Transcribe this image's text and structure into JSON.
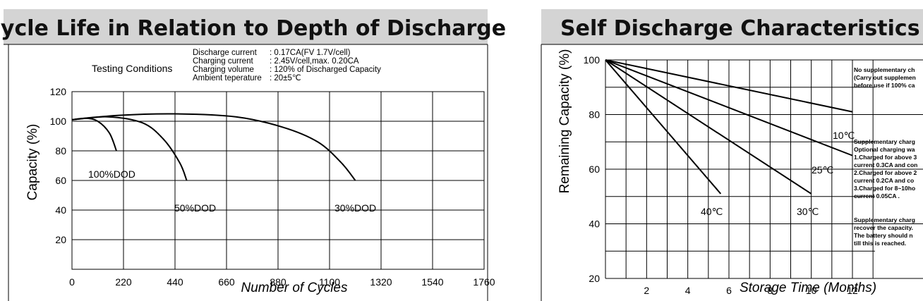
{
  "chart_data": [
    {
      "type": "line",
      "title": "Cycle Life in Relation to Depth of Discharge",
      "xlabel": "Number of Cycles",
      "ylabel": "Capacity (%)",
      "x_ticks": [
        "0",
        "220",
        "440",
        "660",
        "880",
        "1100",
        "1320",
        "1540",
        "1760"
      ],
      "y_ticks": [
        "120",
        "100",
        "80",
        "60",
        "40",
        "20"
      ],
      "xlim": [
        0,
        1760
      ],
      "ylim": [
        0,
        120
      ],
      "grid": true,
      "testing_conditions": {
        "label": "Testing Conditions",
        "lines": [
          {
            "name": "Discharge current",
            "value": ": 0.17CA(FV 1.7V/cell)"
          },
          {
            "name": "Charging current",
            "value": ": 2.45V/cell,max. 0.20CA"
          },
          {
            "name": "Charging volume",
            "value": ": 120% of Discharged Capacity"
          },
          {
            "name": "Ambient teperature",
            "value": ": 20±5℃"
          }
        ]
      },
      "series": [
        {
          "name": "100%DOD",
          "points": [
            [
              0,
              101
            ],
            [
              60,
              102
            ],
            [
              110,
              100
            ],
            [
              160,
              92
            ],
            [
              190,
              80
            ]
          ]
        },
        {
          "name": "50%DOD",
          "points": [
            [
              0,
              101
            ],
            [
              150,
              103
            ],
            [
              300,
              99
            ],
            [
              390,
              88
            ],
            [
              460,
              72
            ],
            [
              490,
              60
            ]
          ]
        },
        {
          "name": "30%DOD",
          "points": [
            [
              0,
              101
            ],
            [
              200,
              104
            ],
            [
              440,
              105
            ],
            [
              700,
              103
            ],
            [
              900,
              96
            ],
            [
              1050,
              86
            ],
            [
              1150,
              72
            ],
            [
              1210,
              60
            ]
          ]
        }
      ]
    },
    {
      "type": "line",
      "title": "Self Discharge Characteristics",
      "xlabel": "Storage Time (Months)",
      "ylabel": "Remaining Capacity (%)",
      "x_ticks": [
        "2",
        "4",
        "6",
        "8",
        "10",
        "12"
      ],
      "y_ticks": [
        "100",
        "80",
        "60",
        "40",
        "20"
      ],
      "xlim": [
        0,
        18
      ],
      "ylim": [
        20,
        100
      ],
      "grid": true,
      "series": [
        {
          "name": "10℃",
          "points": [
            [
              0,
              100
            ],
            [
              12,
              81
            ]
          ]
        },
        {
          "name": "25℃",
          "points": [
            [
              0,
              100
            ],
            [
              12,
              65
            ]
          ]
        },
        {
          "name": "30℃",
          "points": [
            [
              0,
              100
            ],
            [
              10,
              51
            ]
          ]
        },
        {
          "name": "40℃",
          "points": [
            [
              0,
              100
            ],
            [
              5.6,
              51
            ]
          ]
        }
      ],
      "notes": [
        [
          "No supplementary ch",
          "(Carry out supplemen",
          "before use if 100% ca"
        ],
        [
          "Supplementary charg",
          "Optional charging wa",
          "1.Charged for above 3",
          "current 0.3CA and con",
          "2.Charged for above 2",
          " current 0.2CA and co",
          "3.Charged for 8~10ho",
          "current 0.05CA ."
        ],
        [
          "Supplementary charg",
          "recover the capacity.",
          "The battery should n",
          "till this is reached."
        ]
      ]
    }
  ]
}
